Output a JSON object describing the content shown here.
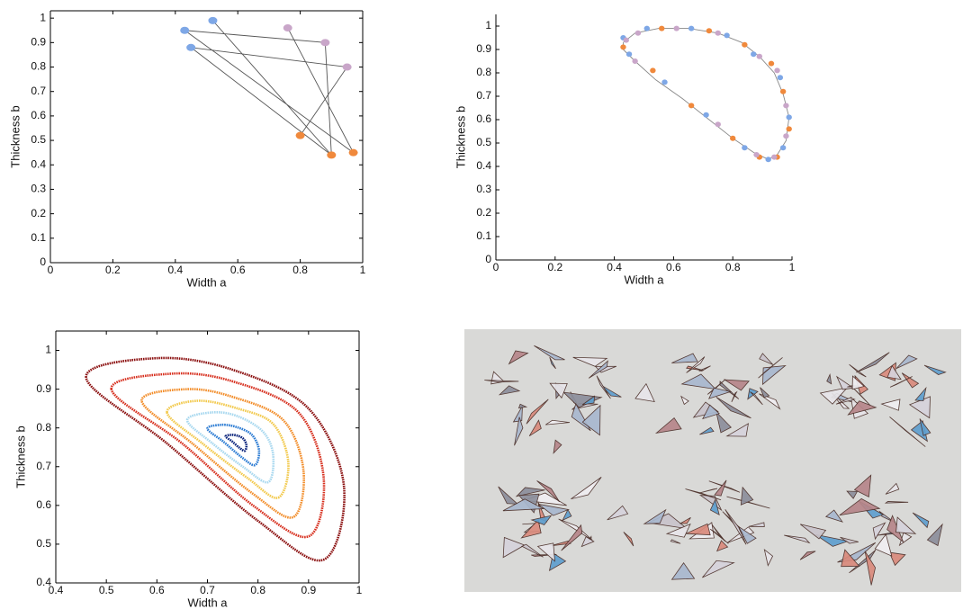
{
  "chart_data": [
    {
      "type": "line",
      "xlabel": "Width a",
      "ylabel": "Thickness b",
      "box": true,
      "xlim": [
        0,
        1
      ],
      "ylim": [
        0,
        1.03
      ],
      "xticks": [
        0,
        0.2,
        0.4,
        0.6,
        0.8,
        1
      ],
      "yticks": [
        0,
        0.1,
        0.2,
        0.3,
        0.4,
        0.5,
        0.6,
        0.7,
        0.8,
        0.9,
        1
      ],
      "series": [
        {
          "type": "line",
          "color": "#555555",
          "x": [
            0.52,
            0.9,
            null,
            0.43,
            0.97,
            0.76,
            null,
            0.43,
            0.88,
            0.9,
            null,
            0.45,
            0.95,
            0.8,
            null,
            0.45,
            0.9
          ],
          "y": [
            0.99,
            0.44,
            null,
            0.95,
            0.45,
            0.96,
            null,
            0.95,
            0.9,
            0.44,
            null,
            0.88,
            0.8,
            0.52,
            null,
            0.88,
            0.44
          ]
        },
        {
          "type": "scatter",
          "color": "#7ea7e6",
          "x": [
            0.43,
            0.52,
            0.45
          ],
          "y": [
            0.95,
            0.99,
            0.88
          ]
        },
        {
          "type": "scatter",
          "color": "#c9a6c9",
          "x": [
            0.76,
            0.88,
            0.95
          ],
          "y": [
            0.96,
            0.9,
            0.8
          ]
        },
        {
          "type": "scatter",
          "color": "#f0893c",
          "x": [
            0.8,
            0.9,
            0.97
          ],
          "y": [
            0.52,
            0.44,
            0.45
          ]
        }
      ]
    },
    {
      "type": "line",
      "xlabel": "Width a",
      "ylabel": "Thickness b",
      "box": false,
      "xlim": [
        0,
        1
      ],
      "ylim": [
        0,
        1.05
      ],
      "xticks": [
        0,
        0.2,
        0.4,
        0.6,
        0.8,
        1
      ],
      "yticks": [
        0,
        0.1,
        0.2,
        0.3,
        0.4,
        0.5,
        0.6,
        0.7,
        0.8,
        0.9,
        1
      ],
      "series": [
        {
          "type": "line",
          "color": "#888888",
          "x": [
            0.43,
            0.47,
            0.55,
            0.65,
            0.75,
            0.83,
            0.89,
            0.94,
            0.97,
            0.99,
            0.98,
            0.95,
            0.92,
            0.87,
            0.8,
            0.72,
            0.63,
            0.54,
            0.47,
            0.43,
            0.43
          ],
          "y": [
            0.93,
            0.97,
            0.99,
            0.99,
            0.97,
            0.93,
            0.87,
            0.8,
            0.71,
            0.61,
            0.51,
            0.45,
            0.43,
            0.46,
            0.52,
            0.6,
            0.69,
            0.77,
            0.85,
            0.9,
            0.93
          ]
        },
        {
          "type": "scatter",
          "color": "#7ea7e6",
          "x": [
            0.43,
            0.51,
            0.66,
            0.78,
            0.87,
            0.96,
            0.99,
            0.97,
            0.92,
            0.84,
            0.71,
            0.57,
            0.45
          ],
          "y": [
            0.95,
            0.99,
            0.99,
            0.96,
            0.88,
            0.78,
            0.61,
            0.48,
            0.43,
            0.48,
            0.62,
            0.76,
            0.88
          ]
        },
        {
          "type": "scatter",
          "color": "#f0893c",
          "x": [
            0.43,
            0.56,
            0.72,
            0.84,
            0.93,
            0.97,
            0.99,
            0.95,
            0.89,
            0.8,
            0.66,
            0.53
          ],
          "y": [
            0.91,
            0.99,
            0.98,
            0.92,
            0.84,
            0.72,
            0.56,
            0.44,
            0.44,
            0.52,
            0.66,
            0.81
          ]
        },
        {
          "type": "scatter",
          "color": "#c9a6c9",
          "x": [
            0.44,
            0.48,
            0.61,
            0.75,
            0.89,
            0.95,
            0.98,
            0.98,
            0.94,
            0.88,
            0.75,
            0.47
          ],
          "y": [
            0.94,
            0.97,
            0.99,
            0.97,
            0.87,
            0.81,
            0.66,
            0.53,
            0.44,
            0.45,
            0.58,
            0.85
          ]
        }
      ]
    },
    {
      "type": "line",
      "xlabel": "Width a",
      "ylabel": "Thickness b",
      "box": true,
      "xlim": [
        0.4,
        1
      ],
      "ylim": [
        0.4,
        1.05
      ],
      "xticks": [
        0.4,
        0.5,
        0.6,
        0.7,
        0.8,
        0.9,
        1
      ],
      "yticks": [
        0.4,
        0.5,
        0.6,
        0.7,
        0.8,
        0.9,
        1
      ],
      "series": [
        {
          "type": "line",
          "closed": true,
          "color": "#8b1010",
          "x": [
            0.46,
            0.6,
            0.75,
            0.9,
            0.97,
            0.93,
            0.8,
            0.62
          ],
          "y": [
            0.93,
            0.98,
            0.95,
            0.85,
            0.65,
            0.46,
            0.56,
            0.76
          ]
        },
        {
          "type": "line",
          "closed": true,
          "color": "#d7301f",
          "x": [
            0.51,
            0.63,
            0.75,
            0.88,
            0.93,
            0.9,
            0.79,
            0.65
          ],
          "y": [
            0.9,
            0.94,
            0.92,
            0.84,
            0.67,
            0.52,
            0.6,
            0.76
          ]
        },
        {
          "type": "line",
          "closed": true,
          "color": "#f28c28",
          "x": [
            0.57,
            0.66,
            0.75,
            0.85,
            0.89,
            0.87,
            0.79,
            0.67
          ],
          "y": [
            0.87,
            0.9,
            0.88,
            0.82,
            0.69,
            0.57,
            0.63,
            0.76
          ]
        },
        {
          "type": "line",
          "closed": true,
          "color": "#f2c94c",
          "x": [
            0.62,
            0.68,
            0.76,
            0.83,
            0.86,
            0.84,
            0.78,
            0.69
          ],
          "y": [
            0.84,
            0.87,
            0.85,
            0.81,
            0.71,
            0.62,
            0.67,
            0.76
          ]
        },
        {
          "type": "line",
          "closed": true,
          "color": "#a8d8ef",
          "x": [
            0.66,
            0.71,
            0.76,
            0.81,
            0.83,
            0.82,
            0.77,
            0.71
          ],
          "y": [
            0.82,
            0.84,
            0.83,
            0.79,
            0.73,
            0.66,
            0.7,
            0.76
          ]
        },
        {
          "type": "line",
          "closed": true,
          "color": "#2b7bd3",
          "x": [
            0.7,
            0.728,
            0.758,
            0.788,
            0.802,
            0.794,
            0.768,
            0.732
          ],
          "y": [
            0.798,
            0.808,
            0.802,
            0.782,
            0.742,
            0.704,
            0.724,
            0.764
          ]
        },
        {
          "type": "line",
          "closed": true,
          "color": "#08217a",
          "x": [
            0.736,
            0.747,
            0.759,
            0.771,
            0.777,
            0.774,
            0.763,
            0.749
          ],
          "y": [
            0.778,
            0.782,
            0.78,
            0.772,
            0.756,
            0.741,
            0.749,
            0.765
          ]
        }
      ]
    }
  ]
}
